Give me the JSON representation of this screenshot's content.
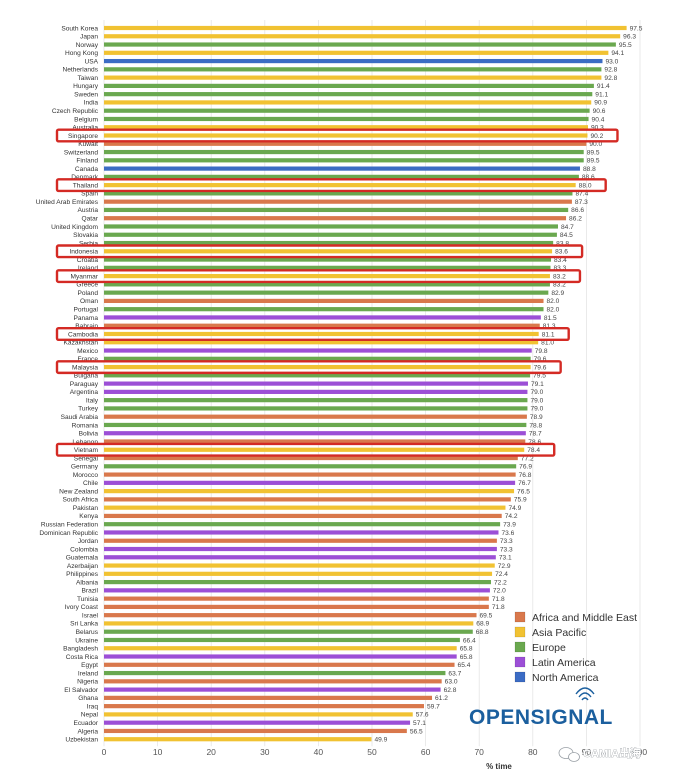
{
  "chart_data": {
    "type": "bar",
    "orientation": "horizontal",
    "xlabel": "% time",
    "xlim": [
      0,
      100
    ],
    "xticks": [
      0,
      10,
      20,
      30,
      40,
      50,
      60,
      70,
      80,
      90,
      100
    ],
    "grid": true,
    "legend_position": "bottom-right",
    "categories": [
      "South Korea",
      "Japan",
      "Norway",
      "Hong Kong",
      "USA",
      "Netherlands",
      "Taiwan",
      "Hungary",
      "Sweden",
      "India",
      "Czech Republic",
      "Belgium",
      "Australia",
      "Singapore",
      "Kuwait",
      "Switzerland",
      "Finland",
      "Canada",
      "Denmark",
      "Thailand",
      "Spain",
      "United Arab Emirates",
      "Austria",
      "Qatar",
      "United Kingdom",
      "Slovakia",
      "Serbia",
      "Indonesia",
      "Croatia",
      "Ireland",
      "Myanmar",
      "Greece",
      "Poland",
      "Oman",
      "Portugal",
      "Panama",
      "Bahrain",
      "Cambodia",
      "Kazakhstan",
      "Mexico",
      "France",
      "Malaysia",
      "Bulgaria",
      "Paraguay",
      "Argentina",
      "Italy",
      "Turkey",
      "Saudi Arabia",
      "Romania",
      "Bolivia",
      "Lebanon",
      "Vietnam",
      "Senegal",
      "Germany",
      "Morocco",
      "Chile",
      "New Zealand",
      "South Africa",
      "Pakistan",
      "Kenya",
      "Russian Federation",
      "Dominican Republic",
      "Jordan",
      "Colombia",
      "Guatemala",
      "Azerbaijan",
      "Philippines",
      "Albania",
      "Brazil",
      "Tunisia",
      "Ivory Coast",
      "Israel",
      "Sri Lanka",
      "Belarus",
      "Ukraine",
      "Bangladesh",
      "Costa Rica",
      "Egypt",
      "Ireland",
      "Nigeria",
      "El Salvador",
      "Ghana",
      "Iraq",
      "Nepal",
      "Ecuador",
      "Algeria",
      "Uzbekistan"
    ],
    "values": [
      97.5,
      96.3,
      95.5,
      94.1,
      93.0,
      92.8,
      92.8,
      91.4,
      91.1,
      90.9,
      90.6,
      90.4,
      90.3,
      90.2,
      90.0,
      89.5,
      89.5,
      88.8,
      88.6,
      88.0,
      87.4,
      87.3,
      86.6,
      86.2,
      84.7,
      84.5,
      83.8,
      83.6,
      83.4,
      83.3,
      83.2,
      83.2,
      82.9,
      82.0,
      82.0,
      81.5,
      81.3,
      81.1,
      81.0,
      79.8,
      79.6,
      79.6,
      79.5,
      79.1,
      79.0,
      79.0,
      79.0,
      78.9,
      78.8,
      78.7,
      78.6,
      78.4,
      77.2,
      76.9,
      76.8,
      76.7,
      76.5,
      75.9,
      74.9,
      74.2,
      73.9,
      73.6,
      73.3,
      73.3,
      73.1,
      72.9,
      72.4,
      72.2,
      72.0,
      71.8,
      71.8,
      69.5,
      68.9,
      68.8,
      66.4,
      65.8,
      65.8,
      65.4,
      63.7,
      63.0,
      62.8,
      61.2,
      59.7,
      57.6,
      57.1,
      56.5,
      49.9
    ],
    "regions": [
      "asia",
      "asia",
      "europe",
      "asia",
      "na",
      "europe",
      "asia",
      "europe",
      "europe",
      "asia",
      "europe",
      "europe",
      "asia",
      "asia",
      "africa",
      "europe",
      "europe",
      "na",
      "europe",
      "asia",
      "europe",
      "africa",
      "europe",
      "africa",
      "europe",
      "europe",
      "europe",
      "asia",
      "europe",
      "europe",
      "asia",
      "europe",
      "europe",
      "africa",
      "europe",
      "latam",
      "africa",
      "asia",
      "asia",
      "latam",
      "europe",
      "asia",
      "europe",
      "latam",
      "latam",
      "europe",
      "europe",
      "africa",
      "europe",
      "latam",
      "africa",
      "asia",
      "africa",
      "europe",
      "africa",
      "latam",
      "asia",
      "africa",
      "asia",
      "africa",
      "europe",
      "latam",
      "africa",
      "latam",
      "latam",
      "asia",
      "asia",
      "europe",
      "latam",
      "africa",
      "africa",
      "africa",
      "asia",
      "europe",
      "europe",
      "asia",
      "latam",
      "africa",
      "europe",
      "africa",
      "latam",
      "africa",
      "africa",
      "asia",
      "latam",
      "africa",
      "asia"
    ],
    "colors": {
      "africa": "#d9784c",
      "asia": "#f1c232",
      "europe": "#6aa84f",
      "latam": "#9c4fd6",
      "na": "#3b6cc4"
    },
    "highlighted": [
      "Singapore",
      "Thailand",
      "Indonesia",
      "Myanmar",
      "Cambodia",
      "Malaysia",
      "Vietnam"
    ],
    "highlight_color": "#d42a24",
    "legend": [
      {
        "key": "africa",
        "label": "Africa and Middle East"
      },
      {
        "key": "asia",
        "label": "Asia Pacific"
      },
      {
        "key": "europe",
        "label": "Europe"
      },
      {
        "key": "latam",
        "label": "Latin America"
      },
      {
        "key": "na",
        "label": "North America"
      }
    ]
  },
  "logo": {
    "text": "OPENSIGNAL",
    "color": "#1b5f9e",
    "signal_icon": "signal-waves-icon"
  },
  "watermark": {
    "text": "CAMIA出海",
    "icon": "wechat-icon"
  }
}
